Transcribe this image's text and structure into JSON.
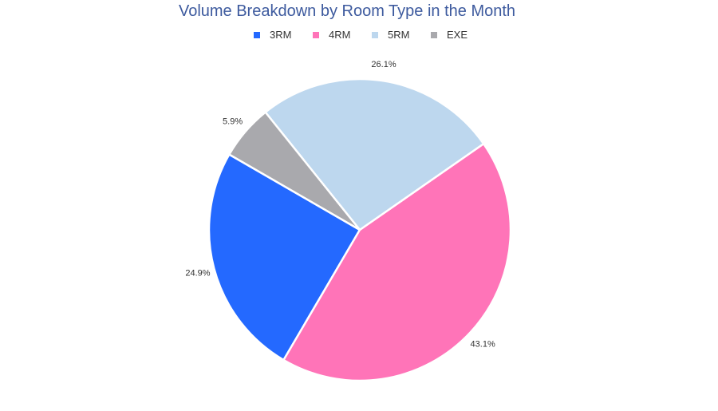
{
  "chart_data": {
    "type": "pie",
    "title": "Volume Breakdown by Room Type in the Month",
    "legend_position": "top",
    "categories": [
      "3RM",
      "4RM",
      "5RM",
      "EXE"
    ],
    "values": [
      24.9,
      43.1,
      26.1,
      5.9
    ],
    "labels": [
      "24.9%",
      "43.1%",
      "26.1%",
      "5.9%"
    ],
    "colors": [
      "#2469ff",
      "#ff74b8",
      "#bdd7ee",
      "#a9a9ad"
    ]
  }
}
